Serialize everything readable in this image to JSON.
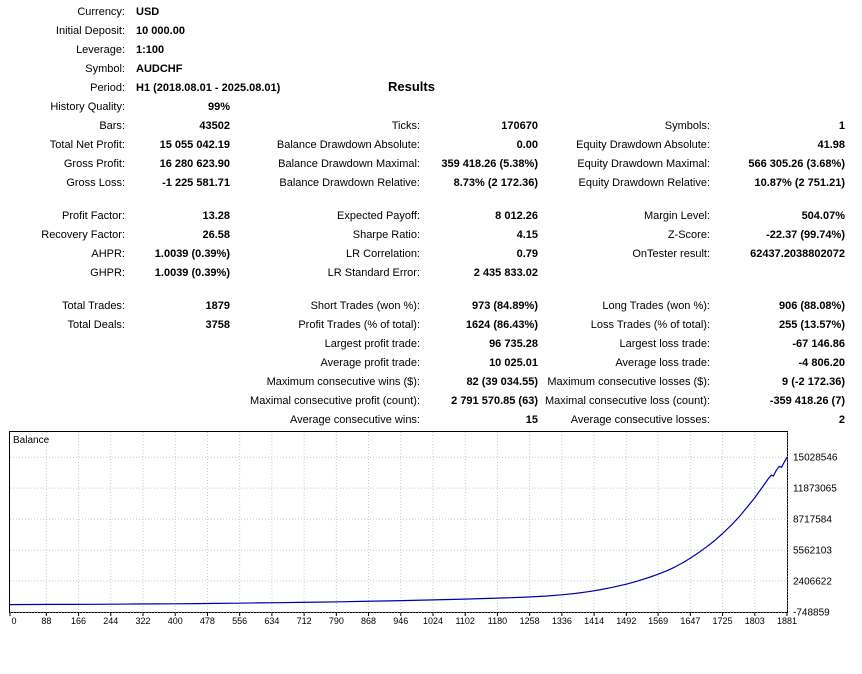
{
  "title": "Results",
  "rows": [
    {
      "hdr": true,
      "c": [
        "Currency:",
        "USD",
        "",
        "",
        "",
        ""
      ]
    },
    {
      "hdr": true,
      "c": [
        "Initial Deposit:",
        "10 000.00",
        "",
        "",
        "",
        ""
      ]
    },
    {
      "hdr": true,
      "c": [
        "Leverage:",
        "1:100",
        "",
        "",
        "",
        ""
      ]
    },
    {
      "hdr": true,
      "c": [
        "Symbol:",
        "AUDCHF",
        "",
        "",
        "",
        ""
      ]
    },
    {
      "hdr": true,
      "c": [
        "Period:",
        "H1 (2018.08.01 - 2025.08.01)",
        "",
        "",
        "",
        ""
      ]
    },
    {
      "c": [
        "History Quality:",
        "99%",
        "",
        "",
        "",
        ""
      ]
    },
    {
      "c": [
        "Bars:",
        "43502",
        "Ticks:",
        "170670",
        "Symbols:",
        "1"
      ]
    },
    {
      "c": [
        "Total Net Profit:",
        "15 055 042.19",
        "Balance Drawdown Absolute:",
        "0.00",
        "Equity Drawdown Absolute:",
        "41.98"
      ]
    },
    {
      "c": [
        "Gross Profit:",
        "16 280 623.90",
        "Balance Drawdown Maximal:",
        "359 418.26 (5.38%)",
        "Equity Drawdown Maximal:",
        "566 305.26 (3.68%)"
      ]
    },
    {
      "c": [
        "Gross Loss:",
        "-1 225 581.71",
        "Balance Drawdown Relative:",
        "8.73% (2 172.36)",
        "Equity Drawdown Relative:",
        "10.87% (2 751.21)"
      ]
    },
    {
      "spacer": true
    },
    {
      "c": [
        "Profit Factor:",
        "13.28",
        "Expected Payoff:",
        "8 012.26",
        "Margin Level:",
        "504.07%"
      ]
    },
    {
      "c": [
        "Recovery Factor:",
        "26.58",
        "Sharpe Ratio:",
        "4.15",
        "Z-Score:",
        "-22.37 (99.74%)"
      ]
    },
    {
      "c": [
        "AHPR:",
        "1.0039 (0.39%)",
        "LR Correlation:",
        "0.79",
        "OnTester result:",
        "62437.2038802072"
      ]
    },
    {
      "c": [
        "GHPR:",
        "1.0039 (0.39%)",
        "LR Standard Error:",
        "2 435 833.02",
        "",
        ""
      ]
    },
    {
      "spacer": true
    },
    {
      "c": [
        "Total Trades:",
        "1879",
        "Short Trades (won %):",
        "973 (84.89%)",
        "Long Trades (won %):",
        "906 (88.08%)"
      ]
    },
    {
      "c": [
        "Total Deals:",
        "3758",
        "Profit Trades (% of total):",
        "1624 (86.43%)",
        "Loss Trades (% of total):",
        "255 (13.57%)"
      ]
    },
    {
      "c": [
        "",
        "",
        "Largest profit trade:",
        "96 735.28",
        "Largest loss trade:",
        "-67 146.86"
      ]
    },
    {
      "c": [
        "",
        "",
        "Average profit trade:",
        "10 025.01",
        "Average loss trade:",
        "-4 806.20"
      ]
    },
    {
      "c": [
        "",
        "",
        "Maximum consecutive wins ($):",
        "82 (39 034.55)",
        "Maximum consecutive losses ($):",
        "9 (-2 172.36)"
      ]
    },
    {
      "c": [
        "",
        "",
        "Maximal consecutive profit (count):",
        "2 791 570.85 (63)",
        "Maximal consecutive loss (count):",
        "-359 418.26 (7)"
      ]
    },
    {
      "c": [
        "",
        "",
        "Average consecutive wins:",
        "15",
        "Average consecutive losses:",
        "2"
      ]
    }
  ],
  "chart_data": {
    "type": "line",
    "title": "Balance",
    "line_color": "#0000AA",
    "grid": true,
    "xlim": [
      0,
      1881
    ],
    "ylim": [
      -748859,
      17600000
    ],
    "x_ticks": [
      0,
      88,
      166,
      244,
      322,
      400,
      478,
      556,
      634,
      712,
      790,
      868,
      946,
      1024,
      1102,
      1180,
      1258,
      1336,
      1414,
      1492,
      1569,
      1647,
      1725,
      1803,
      1881
    ],
    "y_ticks": [
      15028546,
      11873065,
      8717584,
      5562103,
      2406622,
      -748859
    ],
    "y_tick_labels": [
      "15028546",
      "11873065",
      "8717584",
      "5562103",
      "2406622",
      "-748859"
    ],
    "series": [
      {
        "name": "Balance",
        "points": [
          [
            0,
            10000
          ],
          [
            50,
            15000
          ],
          [
            100,
            22000
          ],
          [
            150,
            30000
          ],
          [
            200,
            39000
          ],
          [
            250,
            50000
          ],
          [
            300,
            62000
          ],
          [
            350,
            76000
          ],
          [
            400,
            92000
          ],
          [
            450,
            110000
          ],
          [
            500,
            130000
          ],
          [
            550,
            152000
          ],
          [
            600,
            176000
          ],
          [
            650,
            202000
          ],
          [
            700,
            230000
          ],
          [
            750,
            262000
          ],
          [
            800,
            296000
          ],
          [
            850,
            333000
          ],
          [
            900,
            373000
          ],
          [
            950,
            416000
          ],
          [
            1000,
            462000
          ],
          [
            1050,
            512000
          ],
          [
            1100,
            566000
          ],
          [
            1150,
            624000
          ],
          [
            1200,
            690000
          ],
          [
            1250,
            770000
          ],
          [
            1300,
            880000
          ],
          [
            1336,
            1000000
          ],
          [
            1370,
            1150000
          ],
          [
            1400,
            1320000
          ],
          [
            1430,
            1530000
          ],
          [
            1460,
            1780000
          ],
          [
            1492,
            2080000
          ],
          [
            1520,
            2420000
          ],
          [
            1550,
            2820000
          ],
          [
            1569,
            3100000
          ],
          [
            1590,
            3450000
          ],
          [
            1610,
            3850000
          ],
          [
            1630,
            4300000
          ],
          [
            1647,
            4750000
          ],
          [
            1665,
            5250000
          ],
          [
            1685,
            5850000
          ],
          [
            1705,
            6500000
          ],
          [
            1725,
            7250000
          ],
          [
            1745,
            8050000
          ],
          [
            1765,
            8950000
          ],
          [
            1785,
            9950000
          ],
          [
            1803,
            10900000
          ],
          [
            1815,
            11600000
          ],
          [
            1825,
            12200000
          ],
          [
            1835,
            12800000
          ],
          [
            1843,
            13200000
          ],
          [
            1848,
            13100000
          ],
          [
            1855,
            13700000
          ],
          [
            1862,
            14100000
          ],
          [
            1868,
            14000000
          ],
          [
            1874,
            14500000
          ],
          [
            1881,
            15028546
          ]
        ]
      }
    ]
  }
}
